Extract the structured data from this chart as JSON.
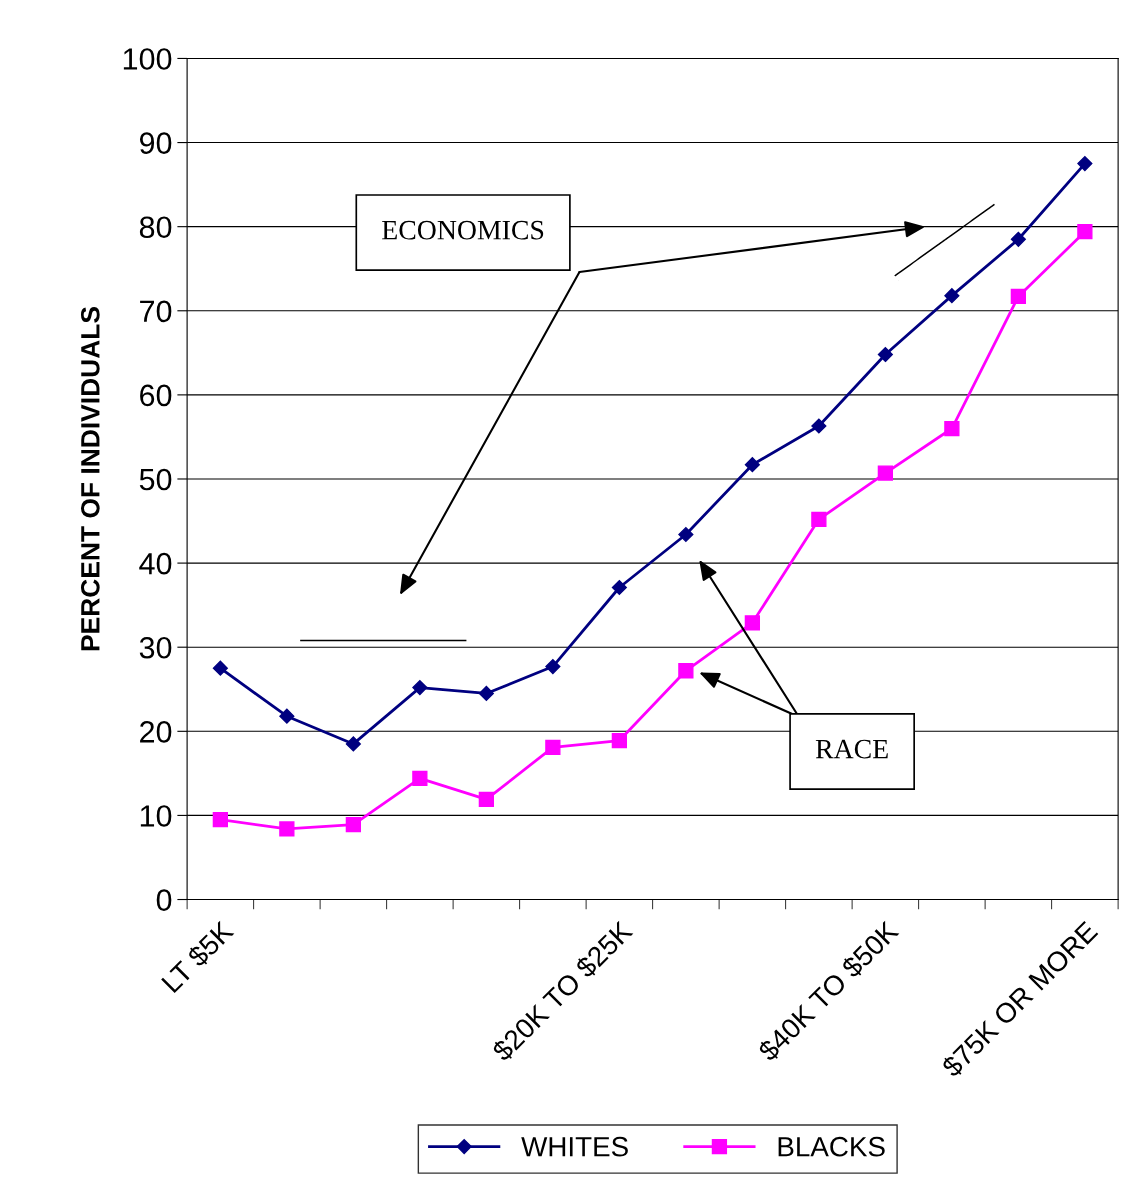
{
  "chart_data": {
    "type": "line",
    "ylabel": "PERCENT OF INDIVIDUALS",
    "categories": [
      "LT $5K",
      null,
      null,
      null,
      null,
      null,
      "$20K TO $25K",
      null,
      null,
      null,
      "$40K TO $50K",
      null,
      null,
      "$75K OR MORE"
    ],
    "series": [
      {
        "name": "WHITES",
        "color": "#000080",
        "marker": "diamond",
        "values": [
          27.5,
          21.8,
          18.5,
          25.2,
          24.5,
          27.7,
          37.1,
          43.4,
          51.7,
          56.3,
          64.8,
          71.8,
          78.5,
          87.5
        ]
      },
      {
        "name": "BLACKS",
        "color": "#ff00ff",
        "marker": "square",
        "values": [
          9.5,
          8.4,
          8.9,
          14.4,
          11.9,
          18.1,
          18.9,
          27.2,
          32.9,
          45.2,
          50.7,
          56.0,
          71.7,
          79.4
        ]
      }
    ],
    "ylim": [
      0,
      100
    ],
    "yticks": [
      0,
      10,
      20,
      30,
      40,
      50,
      60,
      70,
      80,
      90,
      100
    ],
    "grid": "y",
    "legend": "bottom",
    "line_style": "solid",
    "annotations": [
      "ECONOMICS",
      "RACE"
    ]
  }
}
